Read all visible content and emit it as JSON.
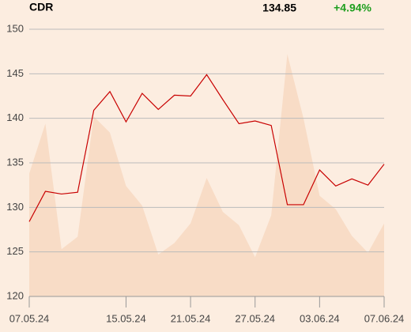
{
  "chart_data": {
    "type": "line",
    "header": {
      "symbol": "CDR",
      "price": "134.85",
      "change": "+4.94%",
      "change_color": "#1e9e1e"
    },
    "categories": [
      "07.05.24",
      null,
      null,
      null,
      null,
      null,
      "15.05.24",
      null,
      null,
      null,
      "21.05.24",
      null,
      null,
      null,
      "27.05.24",
      null,
      null,
      null,
      "03.06.24",
      null,
      null,
      null,
      "07.06.24"
    ],
    "series": [
      {
        "name": "area",
        "kind": "area",
        "color": "#f8dcc6",
        "values": [
          133.8,
          139.4,
          125.3,
          126.7,
          140.2,
          138.4,
          132.4,
          130.2,
          124.7,
          126.0,
          128.2,
          133.3,
          129.5,
          128.0,
          124.4,
          129.1,
          147.2,
          140.0,
          131.3,
          129.8,
          126.8,
          124.9,
          128.2
        ]
      },
      {
        "name": "price",
        "kind": "line",
        "color": "#c80000",
        "values": [
          128.4,
          131.8,
          131.5,
          131.7,
          140.9,
          143.0,
          139.6,
          142.8,
          141.0,
          142.6,
          142.5,
          144.9,
          142.1,
          139.4,
          139.7,
          139.2,
          130.3,
          130.3,
          134.2,
          132.4,
          133.2,
          132.5,
          134.85
        ]
      }
    ],
    "ylim": [
      120,
      150
    ],
    "yticks": [
      120,
      125,
      130,
      135,
      140,
      145,
      150
    ],
    "grid": true
  }
}
